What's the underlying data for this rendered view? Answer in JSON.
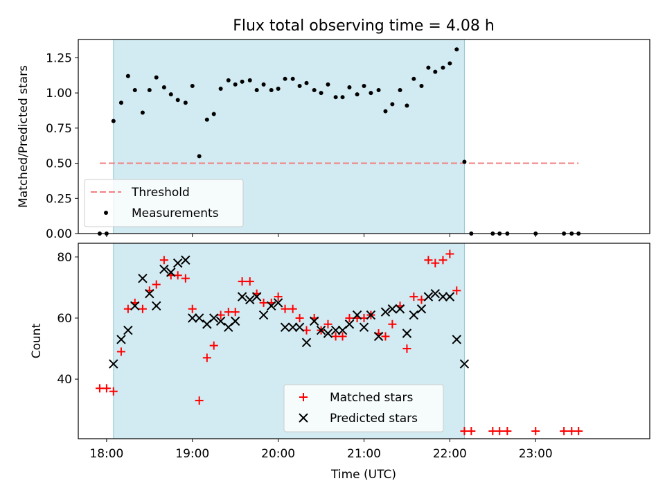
{
  "chart_data": [
    {
      "type": "scatter",
      "title": "Flux total observing time = 4.08 h",
      "xlabel": "",
      "ylabel": "Matched/Predicted stars",
      "xlim": [
        17.67,
        24.33
      ],
      "ylim": [
        0,
        1.38
      ],
      "yticks": [
        "0.00",
        "0.25",
        "0.50",
        "0.75",
        "1.00",
        "1.25"
      ],
      "ytick_values": [
        0,
        0.25,
        0.5,
        0.75,
        1.0,
        1.25
      ],
      "shaded_region": [
        18.08,
        22.17
      ],
      "shaded_color": "#add8e6",
      "threshold": {
        "name": "Threshold",
        "value": 0.5,
        "x": [
          17.92,
          23.5
        ],
        "color": "#f08080"
      },
      "series": [
        {
          "name": "Measurements",
          "color": "#000000",
          "points": [
            [
              17.92,
              0.0
            ],
            [
              18.0,
              0.0
            ],
            [
              18.08,
              0.8
            ],
            [
              18.17,
              0.93
            ],
            [
              18.25,
              1.12
            ],
            [
              18.33,
              1.02
            ],
            [
              18.42,
              0.86
            ],
            [
              18.5,
              1.02
            ],
            [
              18.58,
              1.11
            ],
            [
              18.67,
              1.04
            ],
            [
              18.75,
              0.99
            ],
            [
              18.83,
              0.95
            ],
            [
              18.92,
              0.93
            ],
            [
              19.0,
              1.05
            ],
            [
              19.08,
              0.55
            ],
            [
              19.17,
              0.81
            ],
            [
              19.25,
              0.85
            ],
            [
              19.33,
              1.03
            ],
            [
              19.42,
              1.09
            ],
            [
              19.5,
              1.06
            ],
            [
              19.58,
              1.08
            ],
            [
              19.67,
              1.09
            ],
            [
              19.75,
              1.02
            ],
            [
              19.83,
              1.06
            ],
            [
              19.92,
              1.02
            ],
            [
              20.0,
              1.03
            ],
            [
              20.08,
              1.1
            ],
            [
              20.17,
              1.1
            ],
            [
              20.25,
              1.05
            ],
            [
              20.33,
              1.07
            ],
            [
              20.42,
              1.02
            ],
            [
              20.5,
              1.0
            ],
            [
              20.58,
              1.06
            ],
            [
              20.67,
              0.97
            ],
            [
              20.75,
              0.97
            ],
            [
              20.83,
              1.04
            ],
            [
              20.92,
              0.99
            ],
            [
              21.0,
              1.05
            ],
            [
              21.08,
              1.0
            ],
            [
              21.17,
              1.02
            ],
            [
              21.25,
              0.87
            ],
            [
              21.33,
              0.92
            ],
            [
              21.42,
              1.02
            ],
            [
              21.5,
              0.91
            ],
            [
              21.58,
              1.1
            ],
            [
              21.67,
              1.05
            ],
            [
              21.75,
              1.18
            ],
            [
              21.83,
              1.15
            ],
            [
              21.92,
              1.18
            ],
            [
              22.0,
              1.21
            ],
            [
              22.08,
              1.31
            ],
            [
              22.17,
              0.51
            ],
            [
              22.25,
              0.0
            ],
            [
              22.5,
              0.0
            ],
            [
              22.58,
              0.0
            ],
            [
              22.67,
              0.0
            ],
            [
              23.0,
              0.0
            ],
            [
              23.33,
              0.0
            ],
            [
              23.42,
              0.0
            ],
            [
              23.5,
              0.0
            ]
          ]
        }
      ],
      "legend": {
        "placement": "lower-left",
        "entries": [
          "Threshold",
          "Measurements"
        ]
      }
    },
    {
      "type": "scatter",
      "title": "",
      "xlabel": "Time (UTC)",
      "ylabel": "Count",
      "xlim": [
        17.67,
        24.33
      ],
      "ylim": [
        20.5,
        84.5
      ],
      "xticks": [
        "18:00",
        "19:00",
        "20:00",
        "21:00",
        "22:00",
        "23:00"
      ],
      "xtick_values": [
        18,
        19,
        20,
        21,
        22,
        23
      ],
      "yticks": [
        "40",
        "60",
        "80"
      ],
      "ytick_values": [
        40,
        60,
        80
      ],
      "shaded_region": [
        18.08,
        22.17
      ],
      "shaded_color": "#add8e6",
      "series": [
        {
          "name": "Matched stars",
          "marker": "plus",
          "color": "#ff0000",
          "points": [
            [
              17.92,
              37
            ],
            [
              18.0,
              37
            ],
            [
              18.08,
              36
            ],
            [
              18.17,
              49
            ],
            [
              18.25,
              63
            ],
            [
              18.33,
              65
            ],
            [
              18.42,
              63
            ],
            [
              18.5,
              69
            ],
            [
              18.58,
              71
            ],
            [
              18.67,
              79
            ],
            [
              18.75,
              74
            ],
            [
              18.83,
              74
            ],
            [
              18.92,
              73
            ],
            [
              19.0,
              63
            ],
            [
              19.08,
              33
            ],
            [
              19.17,
              47
            ],
            [
              19.25,
              51
            ],
            [
              19.33,
              61
            ],
            [
              19.42,
              62
            ],
            [
              19.5,
              62
            ],
            [
              19.58,
              72
            ],
            [
              19.67,
              72
            ],
            [
              19.75,
              68
            ],
            [
              19.83,
              65
            ],
            [
              19.92,
              65
            ],
            [
              20.0,
              67
            ],
            [
              20.08,
              63
            ],
            [
              20.17,
              63
            ],
            [
              20.25,
              60
            ],
            [
              20.33,
              56
            ],
            [
              20.42,
              60
            ],
            [
              20.5,
              56
            ],
            [
              20.58,
              58
            ],
            [
              20.67,
              54
            ],
            [
              20.75,
              54
            ],
            [
              20.83,
              60
            ],
            [
              20.92,
              60
            ],
            [
              21.0,
              60
            ],
            [
              21.08,
              61
            ],
            [
              21.17,
              55
            ],
            [
              21.25,
              54
            ],
            [
              21.33,
              58
            ],
            [
              21.42,
              64
            ],
            [
              21.5,
              50
            ],
            [
              21.58,
              67
            ],
            [
              21.67,
              66
            ],
            [
              21.75,
              79
            ],
            [
              21.83,
              78
            ],
            [
              21.92,
              79
            ],
            [
              22.0,
              81
            ],
            [
              22.08,
              69
            ],
            [
              22.17,
              23
            ],
            [
              22.25,
              23
            ],
            [
              22.5,
              23
            ],
            [
              22.58,
              23
            ],
            [
              22.67,
              23
            ],
            [
              23.0,
              23
            ],
            [
              23.33,
              23
            ],
            [
              23.42,
              23
            ],
            [
              23.5,
              23
            ]
          ]
        },
        {
          "name": "Predicted stars",
          "marker": "x",
          "color": "#000000",
          "points": [
            [
              18.08,
              45
            ],
            [
              18.17,
              53
            ],
            [
              18.25,
              56
            ],
            [
              18.33,
              64
            ],
            [
              18.42,
              73
            ],
            [
              18.5,
              68
            ],
            [
              18.58,
              64
            ],
            [
              18.67,
              76
            ],
            [
              18.75,
              75
            ],
            [
              18.83,
              78
            ],
            [
              18.92,
              79
            ],
            [
              19.0,
              60
            ],
            [
              19.08,
              60
            ],
            [
              19.17,
              58
            ],
            [
              19.25,
              60
            ],
            [
              19.33,
              59
            ],
            [
              19.42,
              57
            ],
            [
              19.5,
              59
            ],
            [
              19.58,
              67
            ],
            [
              19.67,
              66
            ],
            [
              19.75,
              67
            ],
            [
              19.83,
              61
            ],
            [
              19.92,
              64
            ],
            [
              20.0,
              65
            ],
            [
              20.08,
              57
            ],
            [
              20.17,
              57
            ],
            [
              20.25,
              57
            ],
            [
              20.33,
              52
            ],
            [
              20.42,
              59
            ],
            [
              20.5,
              56
            ],
            [
              20.58,
              55
            ],
            [
              20.67,
              56
            ],
            [
              20.75,
              56
            ],
            [
              20.83,
              58
            ],
            [
              20.92,
              61
            ],
            [
              21.0,
              57
            ],
            [
              21.08,
              61
            ],
            [
              21.17,
              54
            ],
            [
              21.25,
              62
            ],
            [
              21.33,
              63
            ],
            [
              21.42,
              63
            ],
            [
              21.5,
              55
            ],
            [
              21.58,
              61
            ],
            [
              21.67,
              63
            ],
            [
              21.75,
              67
            ],
            [
              21.83,
              68
            ],
            [
              21.92,
              67
            ],
            [
              22.0,
              67
            ],
            [
              22.08,
              53
            ],
            [
              22.17,
              45
            ]
          ]
        }
      ],
      "legend": {
        "placement": "lower-center",
        "entries": [
          "Matched stars",
          "Predicted stars"
        ]
      }
    }
  ]
}
